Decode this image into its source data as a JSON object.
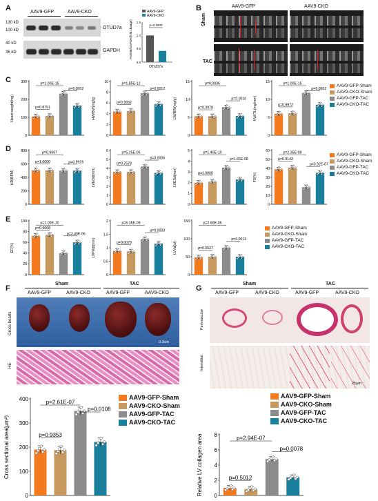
{
  "panels": {
    "A": {
      "label": "A",
      "mw": [
        "130 kD",
        "100 kD",
        "40 kD",
        "35 kD"
      ],
      "groups": [
        "AAV9-GFP",
        "AAV9-CKO"
      ],
      "proteins": [
        "OTUD7a",
        "GAPDH"
      ],
      "inset": {
        "legend": [
          "AAV9-GFP",
          "AAV9-CKO"
        ],
        "ylabel": "Protein/GAPDH(fold change)",
        "xlabel": "OTUD7a",
        "p": "p=0.1500",
        "ticks": [
          "1.5",
          "1.0",
          "0.5",
          "0.0"
        ],
        "values": [
          1.0,
          0.42
        ]
      }
    },
    "B": {
      "label": "B",
      "cols": [
        "AAV9-GFP",
        "AAV9-CKO"
      ],
      "rows": [
        "Sham",
        "TAC"
      ]
    },
    "C": {
      "label": "C"
    },
    "D": {
      "label": "D"
    },
    "E": {
      "label": "E"
    },
    "F": {
      "label": "F",
      "top": [
        "Sham",
        "TAC"
      ],
      "cols": [
        "AAV9-GFP",
        "AAV9-CKO",
        "AAV9-GFP",
        "AAV9-CKO"
      ],
      "rows": [
        "Gross hearts",
        "HE"
      ],
      "scale": "0.3cm"
    },
    "G": {
      "label": "G",
      "top": [
        "Sham",
        "TAC"
      ],
      "cols": [
        "AAV9-GFP",
        "AAV9-CKO",
        "AAV9-GFP",
        "AAV9-CKO"
      ],
      "rows": [
        "Perivascular",
        "Interstitial"
      ],
      "scale": "25μm"
    }
  },
  "legend4": [
    "AAV9-GFP-Sham",
    "AAV9-CKO-Sham",
    "AAV9-GFP-TAC",
    "AAV9-CKO-TAC"
  ],
  "colors": [
    "#f47a20",
    "#c8995e",
    "#8c8c8c",
    "#1a7f9c"
  ],
  "chart_data": [
    {
      "id": "hw",
      "type": "bar",
      "ylabel": "Heart weight(mg)",
      "ylim": [
        0,
        300
      ],
      "ticks": [
        0,
        100,
        200,
        300
      ],
      "values": [
        105,
        108,
        232,
        165
      ],
      "p": [
        "p=0.8751",
        "p=1.00E-15",
        "p=0.0002"
      ]
    },
    {
      "id": "hwbw",
      "type": "bar",
      "ylabel": "HW/BW(mg/g)",
      "ylim": [
        0,
        10
      ],
      "ticks": [
        0,
        2,
        4,
        6,
        8,
        10
      ],
      "values": [
        4.4,
        4.5,
        7.8,
        5.8
      ],
      "p": [
        "p=0.9932",
        "p=1.85E-12",
        "p=0.0012"
      ]
    },
    {
      "id": "lwbw",
      "type": "bar",
      "ylabel": "LW/BW(mg/g)",
      "ylim": [
        0,
        15
      ],
      "ticks": [
        0,
        5,
        10,
        15
      ],
      "values": [
        5.3,
        5.3,
        7.8,
        5.4
      ],
      "p": [
        "p=0.3978",
        "p=0.0036",
        "p=0.0010"
      ]
    },
    {
      "id": "hwtl",
      "type": "bar",
      "ylabel": "HW/TL(mg/mm)",
      "ylim": [
        0,
        15
      ],
      "ticks": [
        0,
        5,
        10,
        15
      ],
      "values": [
        6.0,
        6.1,
        11.8,
        8.5
      ],
      "p": [
        "p=0.9972",
        "p=1.00E-15",
        "p=0.0002"
      ]
    },
    {
      "id": "hr",
      "type": "bar",
      "ylabel": "HR(BPM)",
      "ylim": [
        0,
        800
      ],
      "ticks": [
        0,
        200,
        400,
        600,
        800
      ],
      "values": [
        505,
        505,
        500,
        500
      ],
      "p": [
        "p=1.0000",
        "p=0.9997",
        "p=0.9926"
      ]
    },
    {
      "id": "lvedd",
      "type": "bar",
      "ylabel": "LVEDd(mm)",
      "ylim": [
        0,
        6
      ],
      "ticks": [
        0,
        1,
        2,
        3,
        4,
        5,
        6
      ],
      "values": [
        3.6,
        3.6,
        4.2,
        3.5
      ],
      "p": [
        "p=0.7578",
        "p=5.25E-05",
        "p=0.0006"
      ]
    },
    {
      "id": "lvesd",
      "type": "bar",
      "ylabel": "LVESd(mm)",
      "ylim": [
        0,
        5
      ],
      "ticks": [
        0,
        1,
        2,
        3,
        4,
        5
      ],
      "values": [
        2.0,
        2.1,
        3.4,
        2.3
      ],
      "p": [
        "p=1.0000",
        "p=1.40E-10",
        "p=1.65E-08"
      ]
    },
    {
      "id": "fs",
      "type": "bar",
      "ylabel": "FS(%)",
      "ylim": [
        0,
        60
      ],
      "ticks": [
        0,
        10,
        20,
        30,
        40,
        50,
        60
      ],
      "values": [
        39,
        41,
        19,
        35
      ],
      "p": [
        "p=0.9143",
        "p=2.35E-09",
        "p=3.92E-07"
      ]
    },
    {
      "id": "ef",
      "type": "bar",
      "ylabel": "EF(%)",
      "ylim": [
        0,
        100
      ],
      "ticks": [
        0,
        20,
        40,
        60,
        80,
        100
      ],
      "values": [
        72,
        74,
        40,
        60
      ],
      "p": [
        "p=0.9668",
        "p=1.00E-10",
        "p=3.49E-06"
      ]
    },
    {
      "id": "lvpwd",
      "type": "bar",
      "ylabel": "LVPWd(mm)",
      "ylim": [
        0,
        2.0
      ],
      "ticks": [
        0,
        0.5,
        1.0,
        1.5,
        2.0
      ],
      "values": [
        0.88,
        0.86,
        1.32,
        1.15
      ],
      "p": [
        "p=0.0078",
        "p=6.35E-09",
        "p=0.0033"
      ]
    },
    {
      "id": "lvvd",
      "type": "bar",
      "ylabel": "LVVd(ul)",
      "ylim": [
        0,
        150
      ],
      "ticks": [
        0,
        50,
        100,
        150
      ],
      "values": [
        48,
        50,
        75,
        50
      ],
      "p": [
        "p=0.5527",
        "p=2.60E-06",
        "p=0.0013"
      ]
    },
    {
      "id": "csa",
      "type": "bar",
      "ylabel": "Cross sectional area(μm²)",
      "ylim": [
        0,
        400
      ],
      "ticks": [
        0,
        100,
        200,
        300,
        400
      ],
      "values": [
        190,
        188,
        350,
        222
      ],
      "p": [
        "p=0.9353",
        "p=2.61E-07",
        "p=0.0108"
      ]
    },
    {
      "id": "collagen",
      "type": "bar",
      "ylabel": "Relative LV collagen area",
      "ylim": [
        0,
        8
      ],
      "ticks": [
        0,
        2,
        4,
        6,
        8
      ],
      "values": [
        1.0,
        0.85,
        4.8,
        2.4
      ],
      "p": [
        "p=0.5012",
        "p=2.94E-07",
        "p=0.0078"
      ]
    }
  ]
}
